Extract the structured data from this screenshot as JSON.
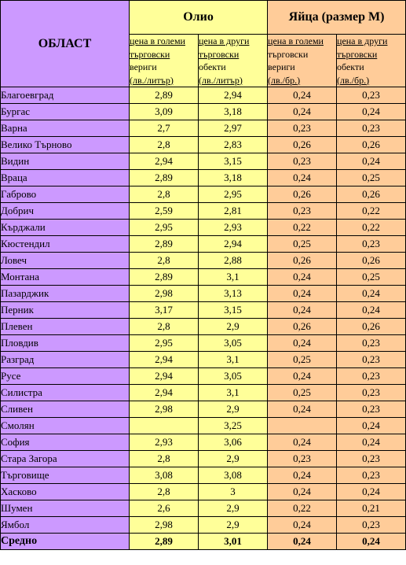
{
  "header": {
    "region_label": "ОБЛАСТ",
    "oil_title": "Олио",
    "egg_title": "Яйца (размер М)",
    "subheaders": [
      {
        "lines": [
          "цена в големи",
          "търговски",
          "вериги",
          "(лв./литър)"
        ]
      },
      {
        "lines": [
          "цена в други",
          "търговски",
          "обекти",
          "(лв./литър)"
        ]
      },
      {
        "lines": [
          "цена в големи",
          "търговски",
          "вериги",
          "(лв./бр.)"
        ]
      },
      {
        "lines": [
          "цена в други",
          "търговски",
          "обекти",
          "(лв./бр.)"
        ]
      }
    ]
  },
  "rows": [
    {
      "region": "Благоевград",
      "oil_big": "2,89",
      "oil_other": "2,94",
      "egg_big": "0,24",
      "egg_other": "0,23"
    },
    {
      "region": "Бургас",
      "oil_big": "3,09",
      "oil_other": "3,18",
      "egg_big": "0,24",
      "egg_other": "0,24"
    },
    {
      "region": "Варна",
      "oil_big": "2,7",
      "oil_other": "2,97",
      "egg_big": "0,23",
      "egg_other": "0,23"
    },
    {
      "region": "Велико Търново",
      "oil_big": "2,8",
      "oil_other": "2,83",
      "egg_big": "0,26",
      "egg_other": "0,26"
    },
    {
      "region": "Видин",
      "oil_big": "2,94",
      "oil_other": "3,15",
      "egg_big": "0,23",
      "egg_other": "0,24"
    },
    {
      "region": "Враца",
      "oil_big": "2,89",
      "oil_other": "3,18",
      "egg_big": "0,24",
      "egg_other": "0,25"
    },
    {
      "region": "Габрово",
      "oil_big": "2,8",
      "oil_other": "2,95",
      "egg_big": "0,26",
      "egg_other": "0,26"
    },
    {
      "region": "Добрич",
      "oil_big": "2,59",
      "oil_other": "2,81",
      "egg_big": "0,23",
      "egg_other": "0,22"
    },
    {
      "region": "Кърджали",
      "oil_big": "2,95",
      "oil_other": "2,93",
      "egg_big": "0,22",
      "egg_other": "0,22"
    },
    {
      "region": "Кюстендил",
      "oil_big": "2,89",
      "oil_other": "2,94",
      "egg_big": "0,25",
      "egg_other": "0,23"
    },
    {
      "region": "Ловеч",
      "oil_big": "2,8",
      "oil_other": "2,88",
      "egg_big": "0,26",
      "egg_other": "0,26"
    },
    {
      "region": "Монтана",
      "oil_big": "2,89",
      "oil_other": "3,1",
      "egg_big": "0,24",
      "egg_other": "0,25"
    },
    {
      "region": "Пазарджик",
      "oil_big": "2,98",
      "oil_other": "3,13",
      "egg_big": "0,24",
      "egg_other": "0,24"
    },
    {
      "region": "Перник",
      "oil_big": "3,17",
      "oil_other": "3,15",
      "egg_big": "0,24",
      "egg_other": "0,24"
    },
    {
      "region": "Плевен",
      "oil_big": "2,8",
      "oil_other": "2,9",
      "egg_big": "0,26",
      "egg_other": "0,26"
    },
    {
      "region": "Пловдив",
      "oil_big": "2,95",
      "oil_other": "3,05",
      "egg_big": "0,24",
      "egg_other": "0,23"
    },
    {
      "region": "Разград",
      "oil_big": "2,94",
      "oil_other": "3,1",
      "egg_big": "0,25",
      "egg_other": "0,23"
    },
    {
      "region": "Русе",
      "oil_big": "2,94",
      "oil_other": "3,05",
      "egg_big": "0,24",
      "egg_other": "0,23"
    },
    {
      "region": "Силистра",
      "oil_big": "2,94",
      "oil_other": "3,1",
      "egg_big": "0,25",
      "egg_other": "0,23"
    },
    {
      "region": "Сливен",
      "oil_big": "2,98",
      "oil_other": "2,9",
      "egg_big": "0,24",
      "egg_other": "0,23"
    },
    {
      "region": "Смолян",
      "oil_big": "",
      "oil_other": "3,25",
      "egg_big": "",
      "egg_other": "0,24"
    },
    {
      "region": "София",
      "oil_big": "2,93",
      "oil_other": "3,06",
      "egg_big": "0,24",
      "egg_other": "0,24"
    },
    {
      "region": "Стара Загора",
      "oil_big": "2,8",
      "oil_other": "2,9",
      "egg_big": "0,23",
      "egg_other": "0,23"
    },
    {
      "region": "Търговище",
      "oil_big": "3,08",
      "oil_other": "3,08",
      "egg_big": "0,24",
      "egg_other": "0,23"
    },
    {
      "region": "Хасково",
      "oil_big": "2,8",
      "oil_other": "3",
      "egg_big": "0,24",
      "egg_other": "0,24"
    },
    {
      "region": "Шумен",
      "oil_big": "2,6",
      "oil_other": "2,9",
      "egg_big": "0,22",
      "egg_other": "0,21"
    },
    {
      "region": "Ямбол",
      "oil_big": "2,98",
      "oil_other": "2,9",
      "egg_big": "0,24",
      "egg_other": "0,23"
    }
  ],
  "average": {
    "region": "Средно",
    "oil_big": "2,89",
    "oil_other": "3,01",
    "egg_big": "0,24",
    "egg_other": "0,24"
  },
  "colors": {
    "region_bg": "#cc99ff",
    "oil_bg": "#ffff99",
    "egg_bg": "#ffcc99"
  }
}
